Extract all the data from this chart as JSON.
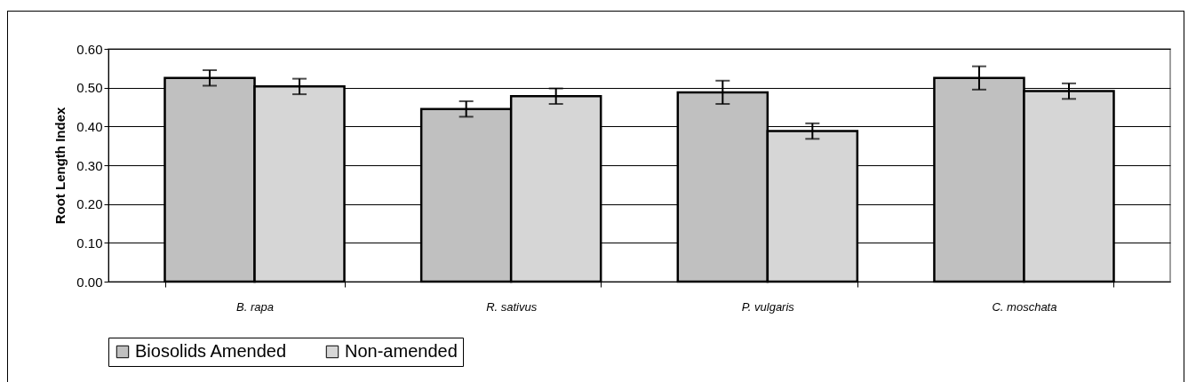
{
  "chart_data": {
    "type": "bar",
    "ylabel": "Root Length Index",
    "categories": [
      "B. rapa",
      "R. sativus",
      "P. vulgaris",
      "C. moschata"
    ],
    "series": [
      {
        "name": "Biosolids Amended",
        "color": "#c0c0c0",
        "values": [
          0.525,
          0.445,
          0.488,
          0.525
        ],
        "errors": [
          0.02,
          0.02,
          0.03,
          0.03
        ]
      },
      {
        "name": "Non-amended",
        "color": "#d6d6d6",
        "values": [
          0.503,
          0.478,
          0.388,
          0.491
        ],
        "errors": [
          0.02,
          0.02,
          0.02,
          0.02
        ]
      }
    ],
    "ylim": [
      0,
      0.6
    ],
    "yticks": [
      {
        "value": 0,
        "label": "0.00"
      },
      {
        "value": 0.1,
        "label": "0.10"
      },
      {
        "value": 0.2,
        "label": "0.20"
      },
      {
        "value": 0.3,
        "label": "0.30"
      },
      {
        "value": 0.4,
        "label": "0.40"
      },
      {
        "value": 0.5,
        "label": "0.50"
      },
      {
        "value": 0.6,
        "label": "0.60"
      }
    ],
    "grid": "y",
    "legend": "bottom"
  }
}
